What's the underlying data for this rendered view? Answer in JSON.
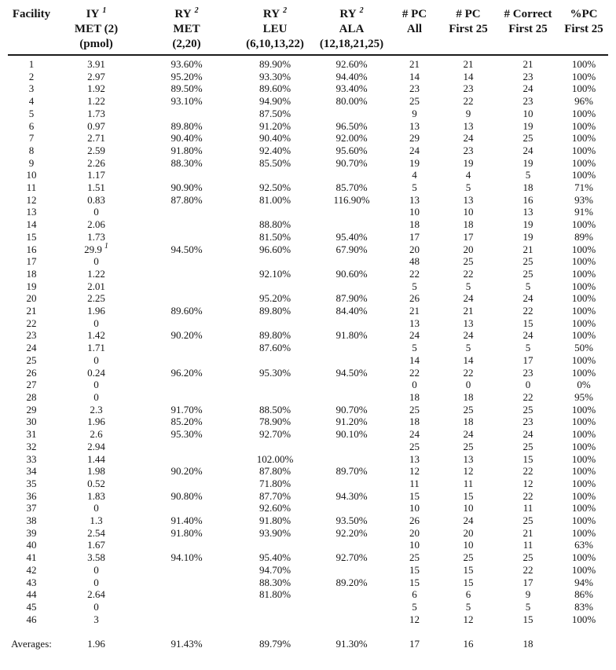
{
  "table": {
    "columns": [
      {
        "id": "facility",
        "line1": "Facility",
        "sup": "",
        "line2": "",
        "line3": ""
      },
      {
        "id": "iy-met",
        "line1": "IY",
        "sup": "1",
        "line2": "MET (2)",
        "line3": "(pmol)"
      },
      {
        "id": "ry-met",
        "line1": "RY",
        "sup": "2",
        "line2": "MET",
        "line3": "(2,20)"
      },
      {
        "id": "ry-leu",
        "line1": "RY",
        "sup": "2",
        "line2": "LEU",
        "line3": "(6,10,13,22)"
      },
      {
        "id": "ry-ala",
        "line1": "RY",
        "sup": "2",
        "line2": "ALA",
        "line3": "(12,18,21,25)"
      },
      {
        "id": "pc-all",
        "line1": "# PC",
        "sup": "",
        "line2": "All",
        "line3": ""
      },
      {
        "id": "pc-first25",
        "line1": "# PC",
        "sup": "",
        "line2": "First 25",
        "line3": ""
      },
      {
        "id": "correct-first25",
        "line1": "# Correct",
        "sup": "",
        "line2": "First 25",
        "line3": ""
      },
      {
        "id": "pct-pc-first25",
        "line1": "%PC",
        "sup": "",
        "line2": "First 25",
        "line3": ""
      }
    ],
    "rows": [
      [
        "1",
        "3.91",
        "93.60%",
        "89.90%",
        "92.60%",
        "21",
        "21",
        "21",
        "100%"
      ],
      [
        "2",
        "2.97",
        "95.20%",
        "93.30%",
        "94.40%",
        "14",
        "14",
        "23",
        "100%"
      ],
      [
        "3",
        "1.92",
        "89.50%",
        "89.60%",
        "93.40%",
        "23",
        "23",
        "24",
        "100%"
      ],
      [
        "4",
        "1.22",
        "93.10%",
        "94.90%",
        "80.00%",
        "25",
        "22",
        "23",
        "96%"
      ],
      [
        "5",
        "1.73",
        "",
        "87.50%",
        "",
        "9",
        "9",
        "10",
        "100%"
      ],
      [
        "6",
        "0.97",
        "89.80%",
        "91.20%",
        "96.50%",
        "13",
        "13",
        "19",
        "100%"
      ],
      [
        "7",
        "2.71",
        "90.40%",
        "90.40%",
        "92.00%",
        "29",
        "24",
        "25",
        "100%"
      ],
      [
        "8",
        "2.59",
        "91.80%",
        "92.40%",
        "95.60%",
        "24",
        "23",
        "24",
        "100%"
      ],
      [
        "9",
        "2.26",
        "88.30%",
        "85.50%",
        "90.70%",
        "19",
        "19",
        "19",
        "100%"
      ],
      [
        "10",
        "1.17",
        "",
        "",
        "",
        "4",
        "4",
        "5",
        "100%"
      ],
      [
        "11",
        "1.51",
        "90.90%",
        "92.50%",
        "85.70%",
        "5",
        "5",
        "18",
        "71%"
      ],
      [
        "12",
        "0.83",
        "87.80%",
        "81.00%",
        "116.90%",
        "13",
        "13",
        "16",
        "93%"
      ],
      [
        "13",
        "0",
        "",
        "",
        "",
        "10",
        "10",
        "13",
        "91%"
      ],
      [
        "14",
        "2.06",
        "",
        "88.80%",
        "",
        "18",
        "18",
        "19",
        "100%"
      ],
      [
        "15",
        "1.73",
        "",
        "81.50%",
        "95.40%",
        "17",
        "17",
        "19",
        "89%"
      ],
      [
        "16",
        {
          "text": "29.9",
          "sup": "1"
        },
        "94.50%",
        "96.60%",
        "67.90%",
        "20",
        "20",
        "21",
        "100%"
      ],
      [
        "17",
        "0",
        "",
        "",
        "",
        "48",
        "25",
        "25",
        "100%"
      ],
      [
        "18",
        "1.22",
        "",
        "92.10%",
        "90.60%",
        "22",
        "22",
        "25",
        "100%"
      ],
      [
        "19",
        "2.01",
        "",
        "",
        "",
        "5",
        "5",
        "5",
        "100%"
      ],
      [
        "20",
        "2.25",
        "",
        "95.20%",
        "87.90%",
        "26",
        "24",
        "24",
        "100%"
      ],
      [
        "21",
        "1.96",
        "89.60%",
        "89.80%",
        "84.40%",
        "21",
        "21",
        "22",
        "100%"
      ],
      [
        "22",
        "0",
        "",
        "",
        "",
        "13",
        "13",
        "15",
        "100%"
      ],
      [
        "23",
        "1.42",
        "90.20%",
        "89.80%",
        "91.80%",
        "24",
        "24",
        "24",
        "100%"
      ],
      [
        "24",
        "1.71",
        "",
        "87.60%",
        "",
        "5",
        "5",
        "5",
        "50%"
      ],
      [
        "25",
        "0",
        "",
        "",
        "",
        "14",
        "14",
        "17",
        "100%"
      ],
      [
        "26",
        "0.24",
        "96.20%",
        "95.30%",
        "94.50%",
        "22",
        "22",
        "23",
        "100%"
      ],
      [
        "27",
        "0",
        "",
        "",
        "",
        "0",
        "0",
        "0",
        "0%"
      ],
      [
        "28",
        "0",
        "",
        "",
        "",
        "18",
        "18",
        "22",
        "95%"
      ],
      [
        "29",
        "2.3",
        "91.70%",
        "88.50%",
        "90.70%",
        "25",
        "25",
        "25",
        "100%"
      ],
      [
        "30",
        "1.96",
        "85.20%",
        "78.90%",
        "91.20%",
        "18",
        "18",
        "23",
        "100%"
      ],
      [
        "31",
        "2.6",
        "95.30%",
        "92.70%",
        "90.10%",
        "24",
        "24",
        "24",
        "100%"
      ],
      [
        "32",
        "2.94",
        "",
        "",
        "",
        "25",
        "25",
        "25",
        "100%"
      ],
      [
        "33",
        "1.44",
        "",
        "102.00%",
        "",
        "13",
        "13",
        "15",
        "100%"
      ],
      [
        "34",
        "1.98",
        "90.20%",
        "87.80%",
        "89.70%",
        "12",
        "12",
        "22",
        "100%"
      ],
      [
        "35",
        "0.52",
        "",
        "71.80%",
        "",
        "11",
        "11",
        "12",
        "100%"
      ],
      [
        "36",
        "1.83",
        "90.80%",
        "87.70%",
        "94.30%",
        "15",
        "15",
        "22",
        "100%"
      ],
      [
        "37",
        "0",
        "",
        "92.60%",
        "",
        "10",
        "10",
        "11",
        "100%"
      ],
      [
        "38",
        "1.3",
        "91.40%",
        "91.80%",
        "93.50%",
        "26",
        "24",
        "25",
        "100%"
      ],
      [
        "39",
        "2.54",
        "91.80%",
        "93.90%",
        "92.20%",
        "20",
        "20",
        "21",
        "100%"
      ],
      [
        "40",
        "1.67",
        "",
        "",
        "",
        "10",
        "10",
        "11",
        "63%"
      ],
      [
        "41",
        "3.58",
        "94.10%",
        "95.40%",
        "92.70%",
        "25",
        "25",
        "25",
        "100%"
      ],
      [
        "42",
        "0",
        "",
        "94.70%",
        "",
        "15",
        "15",
        "22",
        "100%"
      ],
      [
        "43",
        "0",
        "",
        "88.30%",
        "89.20%",
        "15",
        "15",
        "17",
        "94%"
      ],
      [
        "44",
        "2.64",
        "",
        "81.80%",
        "",
        "6",
        "6",
        "9",
        "86%"
      ],
      [
        "45",
        "0",
        "",
        "",
        "",
        "5",
        "5",
        "5",
        "83%"
      ],
      [
        "46",
        "3",
        "",
        "",
        "",
        "12",
        "12",
        "15",
        "100%"
      ]
    ],
    "averages": {
      "label": "Averages:",
      "values": [
        "1.96",
        "91.43%",
        "89.79%",
        "91.30%",
        "17",
        "16",
        "18",
        ""
      ]
    }
  }
}
